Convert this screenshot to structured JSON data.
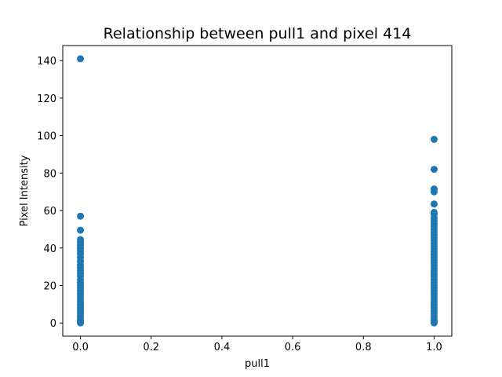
{
  "chart_data": {
    "type": "scatter",
    "title": "Relationship between pull1 and pixel 414",
    "xlabel": "pull1",
    "ylabel": "Pixel Intensity",
    "xlim": [
      -0.05,
      1.05
    ],
    "ylim": [
      -7.05,
      148.05
    ],
    "x_ticks": [
      "0.0",
      "0.2",
      "0.4",
      "0.6",
      "0.8",
      "1.0"
    ],
    "y_ticks": [
      "0",
      "20",
      "40",
      "60",
      "80",
      "100",
      "120",
      "140"
    ],
    "grid": false,
    "legend": "none",
    "color": "#1f77b4",
    "series": [
      {
        "x_value": 0,
        "values": [
          141,
          57,
          49.5,
          44.5,
          43,
          41.5,
          40,
          38.5,
          37,
          35,
          33,
          31,
          29.5,
          28,
          26.5,
          25,
          23,
          21.5,
          20,
          18.5,
          17,
          15.5,
          14,
          12.5,
          11,
          9.5,
          8,
          6.5,
          5,
          3.5,
          2,
          1,
          0.5,
          0
        ]
      },
      {
        "x_value": 1,
        "values": [
          98,
          82,
          71.5,
          70,
          63.5,
          59,
          58,
          56,
          54.5,
          53,
          51.5,
          50,
          48.5,
          47,
          45.5,
          44,
          42.5,
          41,
          39.5,
          38,
          36.5,
          35,
          33.5,
          32,
          30.5,
          29,
          27.5,
          26,
          24.5,
          23,
          21.5,
          20,
          18.5,
          17,
          15.5,
          14,
          12.5,
          11,
          9.5,
          8,
          6.5,
          5,
          3.5,
          2,
          1,
          0.5,
          0
        ]
      }
    ]
  }
}
